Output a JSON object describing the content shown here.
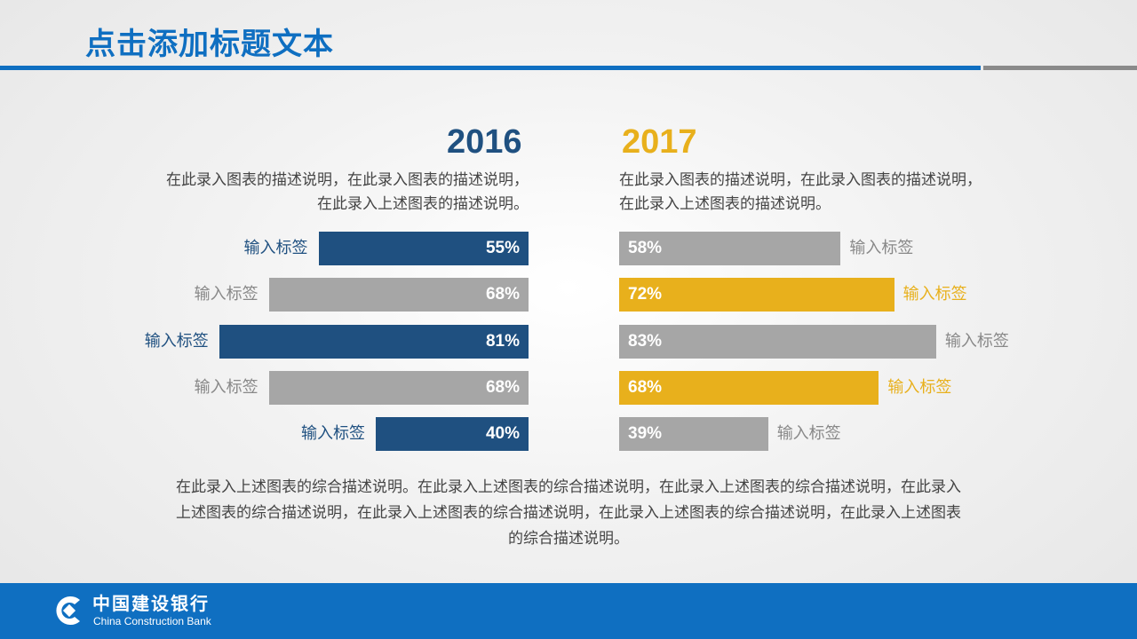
{
  "title": "点击添加标题文本",
  "colors": {
    "accent": "#0f6fc1",
    "bar_2016": "#1f5080",
    "bar_2017": "#e8b01c",
    "bar_gray": "#a6a6a6"
  },
  "chart_data": [
    {
      "type": "bar",
      "orientation": "horizontal",
      "title": "2016",
      "description": "在此录入图表的描述说明，在此录入图表的描述说明，在此录入上述图表的描述说明。",
      "categories": [
        "输入标签",
        "输入标签",
        "输入标签",
        "输入标签",
        "输入标签"
      ],
      "values": [
        55,
        68,
        81,
        68,
        40
      ],
      "value_labels": [
        "55%",
        "68%",
        "81%",
        "68%",
        "40%"
      ],
      "highlight": [
        true,
        false,
        true,
        false,
        true
      ],
      "xlim": [
        0,
        100
      ]
    },
    {
      "type": "bar",
      "orientation": "horizontal",
      "title": "2017",
      "description": "在此录入图表的描述说明，在此录入图表的描述说明，在此录入上述图表的描述说明。",
      "categories": [
        "输入标签",
        "输入标签",
        "输入标签",
        "输入标签",
        "输入标签"
      ],
      "values": [
        58,
        72,
        83,
        68,
        39
      ],
      "value_labels": [
        "58%",
        "72%",
        "83%",
        "68%",
        "39%"
      ],
      "highlight": [
        false,
        true,
        false,
        true,
        false
      ],
      "xlim": [
        0,
        100
      ]
    }
  ],
  "desc_2016": [
    "在此录入图表的描述说明，在此录入图表的描述说明，",
    "在此录入上述图表的描述说明。"
  ],
  "desc_2017": [
    "在此录入图表的描述说明，在此录入图表的描述说明，",
    "在此录入上述图表的描述说明。"
  ],
  "summary": [
    "在此录入上述图表的综合描述说明。在此录入上述图表的综合描述说明，在此录入上述图表的综合描述说明，在此录入",
    "上述图表的综合描述说明，在此录入上述图表的综合描述说明，在此录入上述图表的综合描述说明，在此录入上述图表",
    "的综合描述说明。"
  ],
  "footer": {
    "logo_cn": "中国建设银行",
    "logo_en": "China Construction Bank"
  }
}
